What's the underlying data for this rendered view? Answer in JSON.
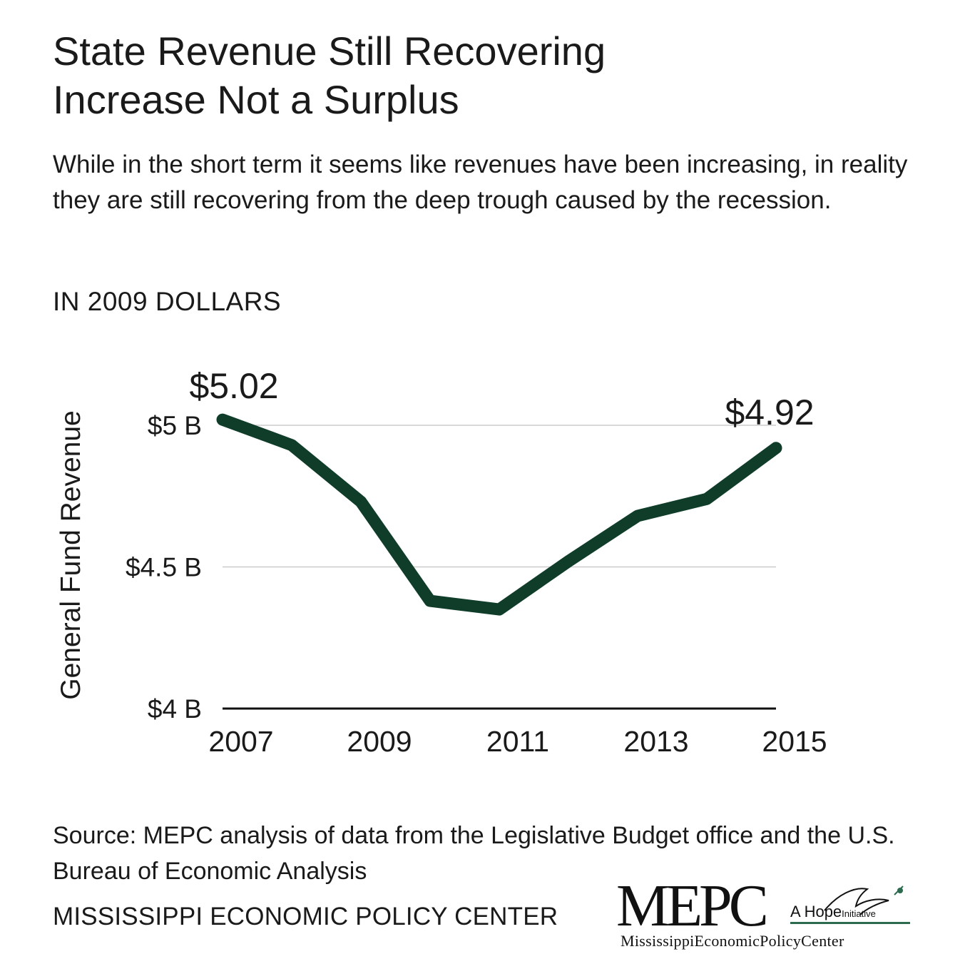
{
  "header": {
    "title_line1": "State Revenue Still Recovering",
    "title_line2": "Increase Not a Surplus",
    "subtitle": "While in the short term it seems like revenues have been increasing, in reality they are still recovering from the deep trough caused by the recession.",
    "units_note": "IN 2009 DOLLARS"
  },
  "chart_data": {
    "type": "line",
    "title": "State Revenue Still Recovering",
    "xlabel": "",
    "ylabel": "General Fund Revenue",
    "x": [
      2007,
      2008,
      2009,
      2010,
      2011,
      2012,
      2013,
      2014,
      2015
    ],
    "series": [
      {
        "values": [
          5.02,
          4.93,
          4.73,
          4.38,
          4.35,
          4.52,
          4.68,
          4.74,
          4.92
        ]
      }
    ],
    "x_tick_labels": [
      "2007",
      "2009",
      "2011",
      "2013",
      "2015"
    ],
    "x_ticks": [
      2007,
      2009,
      2011,
      2013,
      2015
    ],
    "y_ticks": [
      4,
      4.5,
      5
    ],
    "y_tick_labels": [
      "$4 B",
      "$4.5 B",
      "$5 B"
    ],
    "ylim": [
      4,
      5.02
    ],
    "annotations": [
      {
        "text": "$5.02",
        "x": 2007,
        "y": 5.02
      },
      {
        "text": "$4.92",
        "x": 2015,
        "y": 4.92
      }
    ],
    "grid": true,
    "line_color": "#0f3d2a",
    "grid_color": "#cccccc",
    "axis_color": "#111111"
  },
  "footer": {
    "source": "Source: MEPC analysis of data from the Legislative Budget office and the U.S. Bureau of Economic Analysis",
    "org": "MISSISSIPPI ECONOMIC POLICY CENTER"
  },
  "logo": {
    "mark": "MEPC",
    "tag_main": "A Hope",
    "tag_small": "Initiative",
    "full_name": "MississippiEconomicPolicyCenter",
    "bird_icon": "dove-icon",
    "accent_color": "#2d6b4f"
  }
}
